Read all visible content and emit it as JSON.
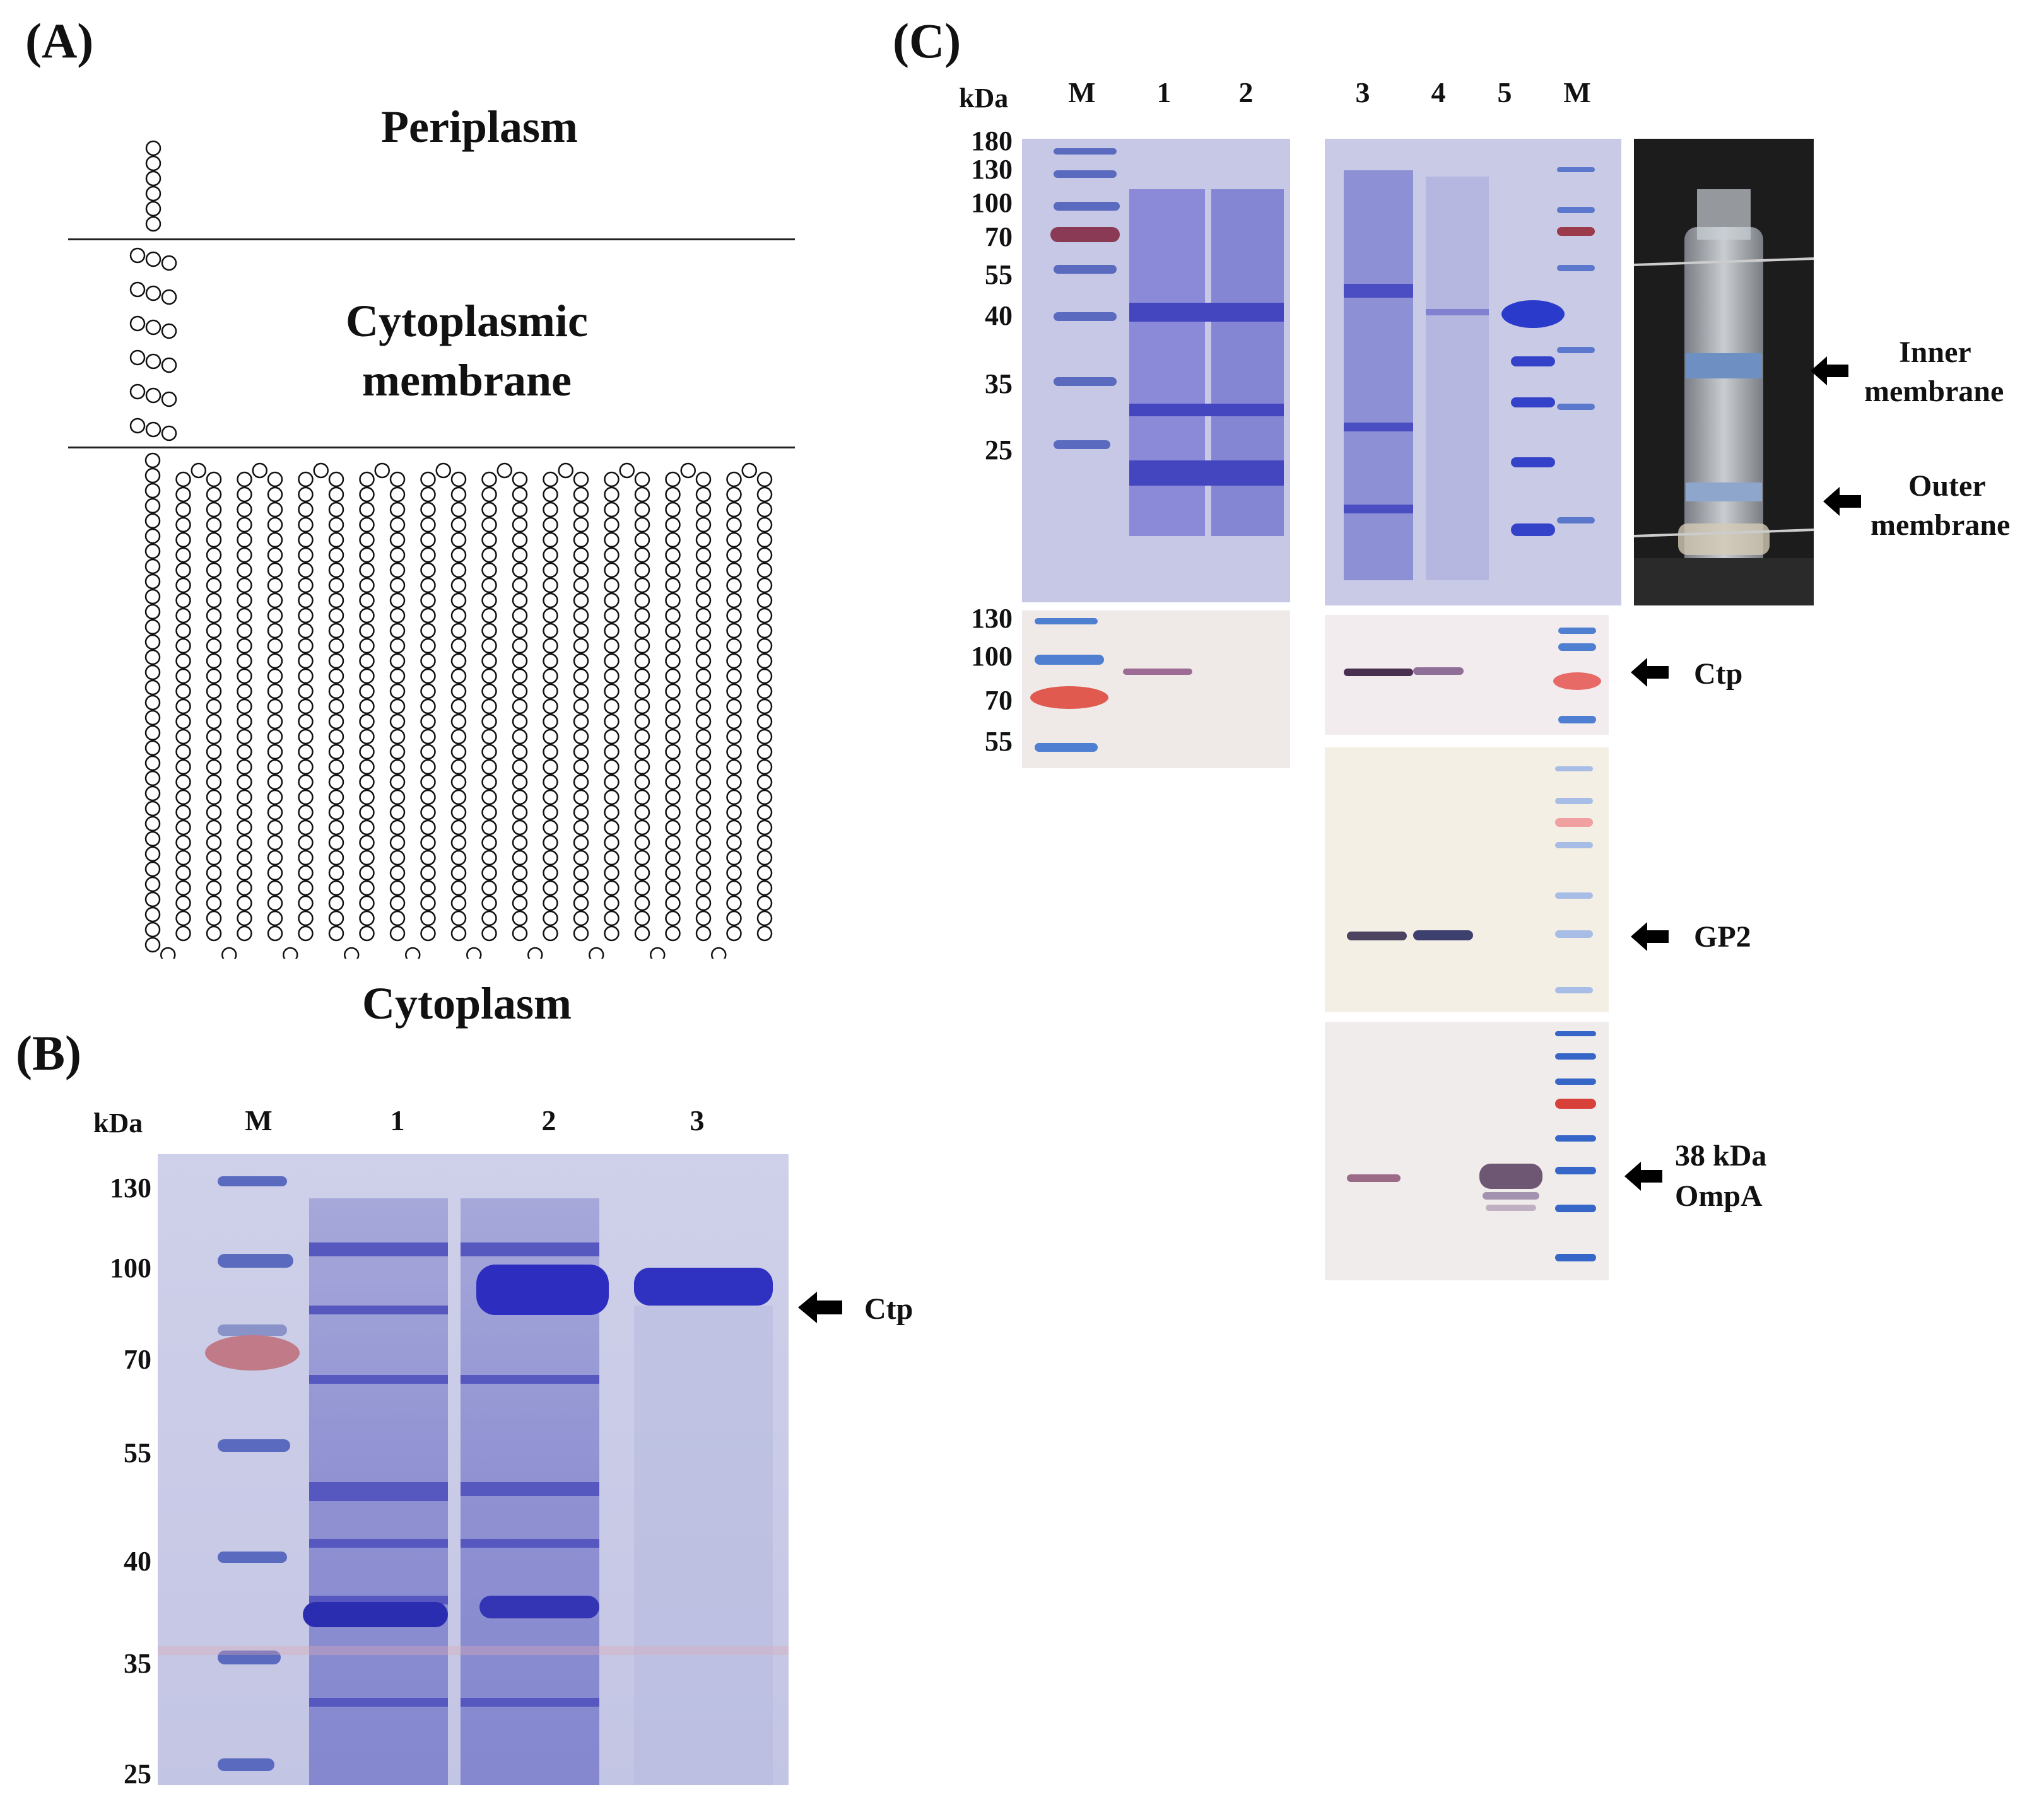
{
  "panelA": {
    "letter": "(A)",
    "periplasm": "Periplasm",
    "membrane_line1": "Cytoplasmic",
    "membrane_line2": "membrane",
    "cytoplasm": "Cytoplasm"
  },
  "panelB": {
    "letter": "(B)",
    "kda": "kDa",
    "lanes": [
      "M",
      "1",
      "2",
      "3"
    ],
    "markers": [
      "130",
      "100",
      "70",
      "55",
      "40",
      "35",
      "25"
    ],
    "arrow_label": "Ctp"
  },
  "panelC": {
    "letter": "(C)",
    "kda": "kDa",
    "lanes": [
      "M",
      "1",
      "2",
      "3",
      "4",
      "5",
      "M"
    ],
    "markers_top": [
      "180",
      "130",
      "100",
      "70",
      "55",
      "40",
      "35",
      "25"
    ],
    "markers_blot": [
      "130",
      "100",
      "70",
      "55"
    ],
    "tube_labels": {
      "inner_line1": "Inner",
      "inner_line2": "membrane",
      "outer_line1": "Outer",
      "outer_line2": "membrane"
    },
    "blot_labels": {
      "ctp": "Ctp",
      "gp2": "GP2",
      "ompa_line1": "38 kDa",
      "ompa_line2": "OmpA"
    }
  },
  "colors": {
    "coomassie_bg": "#c9cbe6",
    "coomassie_band": "#3d3fb3",
    "marker_red": "#b0505a",
    "blot_bg": "#f3eee6",
    "blot_band": "#5a3a55",
    "marker_blue": "#3a6bc8",
    "tube_bg": "#1e1e1e"
  }
}
